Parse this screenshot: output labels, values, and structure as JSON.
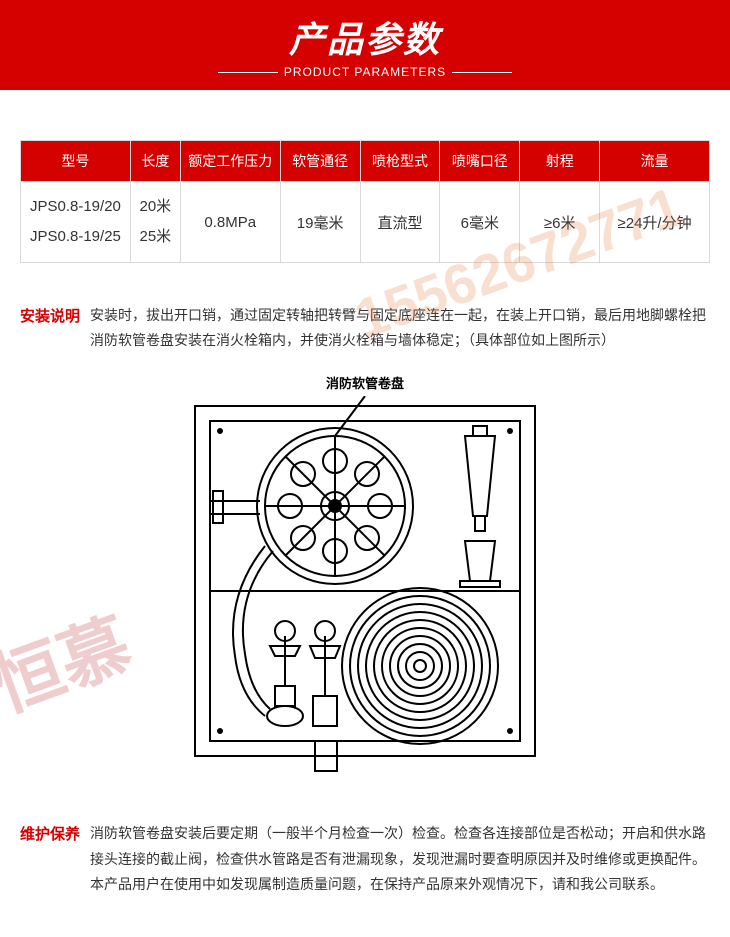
{
  "header": {
    "title_cn": "产品参数",
    "title_en": "PRODUCT PARAMETERS"
  },
  "colors": {
    "brand_red": "#d50000",
    "border": "#d9d9d9",
    "text": "#333333",
    "bg": "#ffffff",
    "wm_orange": "#e07030",
    "wm_red": "#c02020"
  },
  "table": {
    "headers": [
      "型号",
      "长度",
      "额定工作压力",
      "软管通径",
      "喷枪型式",
      "喷嘴口径",
      "射程",
      "流量"
    ],
    "col_widths": [
      "110",
      "50",
      "100",
      "80",
      "80",
      "80",
      "80",
      "110"
    ],
    "rows": [
      {
        "model": "JPS0.8-19/20\nJPS0.8-19/25",
        "length": "20米\n25米",
        "pressure": "0.8MPa",
        "hose_dia": "19毫米",
        "nozzle_type": "直流型",
        "nozzle_dia": "6毫米",
        "range": "≥6米",
        "flow": "≥24升/分钟"
      }
    ]
  },
  "install": {
    "label": "安装说明",
    "text": "安装时，拔出开口销，通过固定转轴把转臂与固定底座连在一起，在装上开口销，最后用地脚螺栓把消防软管卷盘安装在消火栓箱内，并使消火栓箱与墙体稳定；（具体部位如上图所示）"
  },
  "diagram": {
    "label": "消防软管卷盘",
    "stroke": "#000000",
    "stroke_width": 2,
    "bg": "#ffffff"
  },
  "maintain": {
    "label": "维护保养",
    "text": "消防软管卷盘安装后要定期（一般半个月检查一次）检查。检查各连接部位是否松动；开启和供水路接头连接的截止阀，检查供水管路是否有泄漏现象，发现泄漏时要查明原因并及时维修或更换配件。本产品用户在使用中如发现属制造质量问题，在保持产品原来外观情况下，请和我公司联系。"
  },
  "watermarks": {
    "phone": "15562672771",
    "company": "恒慕"
  }
}
